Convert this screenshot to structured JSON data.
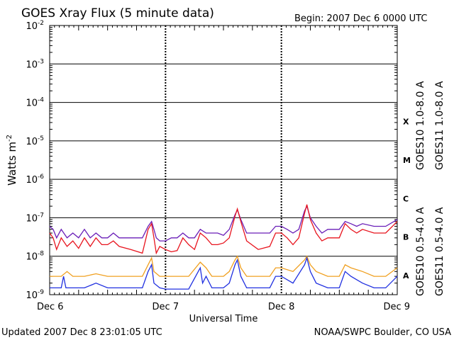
{
  "chart_data": {
    "type": "line",
    "title": "GOES Xray Flux (5 minute data)",
    "begin_label": "Begin:  2007 Dec 6 0000 UTC",
    "ylabel": "Watts m",
    "ylabel_exp": "-2",
    "xlabel": "Universal Time",
    "yscale": "log",
    "ylim": [
      1e-09,
      0.01
    ],
    "y_ticks": [
      {
        "base": "10",
        "exp": "-2"
      },
      {
        "base": "10",
        "exp": "-3"
      },
      {
        "base": "10",
        "exp": "-4"
      },
      {
        "base": "10",
        "exp": "-5"
      },
      {
        "base": "10",
        "exp": "-6"
      },
      {
        "base": "10",
        "exp": "-7"
      },
      {
        "base": "10",
        "exp": "-8"
      },
      {
        "base": "10",
        "exp": "-9"
      }
    ],
    "x_ticks": [
      "Dec 6",
      "Dec 7",
      "Dec 8",
      "Dec 9"
    ],
    "xlim_days": [
      0,
      3
    ],
    "flare_classes": [
      "X",
      "M",
      "C",
      "B",
      "A"
    ],
    "series": [
      {
        "name": "GOES10 1.0-8.0 A",
        "color": "#6a1fb8",
        "x": [
          0,
          0.03,
          0.06,
          0.1,
          0.15,
          0.2,
          0.25,
          0.3,
          0.35,
          0.4,
          0.45,
          0.5,
          0.55,
          0.6,
          0.7,
          0.8,
          0.85,
          0.88,
          0.9,
          0.92,
          0.95,
          1.0,
          1.05,
          1.1,
          1.15,
          1.2,
          1.25,
          1.3,
          1.35,
          1.4,
          1.45,
          1.5,
          1.55,
          1.6,
          1.62,
          1.65,
          1.7,
          1.8,
          1.9,
          1.95,
          2.0,
          2.05,
          2.1,
          2.15,
          2.2,
          2.22,
          2.25,
          2.3,
          2.35,
          2.4,
          2.5,
          2.55,
          2.6,
          2.65,
          2.7,
          2.8,
          2.9,
          3.0
        ],
        "y": [
          6e-08,
          5e-08,
          3e-08,
          5e-08,
          3e-08,
          4e-08,
          3e-08,
          5e-08,
          3e-08,
          4e-08,
          3e-08,
          3e-08,
          4e-08,
          3e-08,
          3e-08,
          3e-08,
          6e-08,
          8e-08,
          5e-08,
          3e-08,
          2.5e-08,
          2.5e-08,
          3e-08,
          3e-08,
          4e-08,
          3e-08,
          3e-08,
          5e-08,
          4e-08,
          4e-08,
          4e-08,
          3.5e-08,
          5e-08,
          1.2e-07,
          1.6e-07,
          9e-08,
          4e-08,
          4e-08,
          4e-08,
          6e-08,
          6e-08,
          5e-08,
          4e-08,
          5e-08,
          1.5e-07,
          2e-07,
          1e-07,
          6e-08,
          4e-08,
          5e-08,
          5e-08,
          8e-08,
          7e-08,
          6e-08,
          7e-08,
          6e-08,
          6e-08,
          9e-08
        ]
      },
      {
        "name": "GOES11 1.0-8.0 A",
        "color": "#e8141e",
        "x": [
          0,
          0.03,
          0.06,
          0.1,
          0.15,
          0.2,
          0.25,
          0.3,
          0.35,
          0.4,
          0.45,
          0.5,
          0.55,
          0.6,
          0.7,
          0.8,
          0.85,
          0.88,
          0.9,
          0.92,
          0.95,
          1.0,
          1.05,
          1.1,
          1.15,
          1.2,
          1.25,
          1.3,
          1.35,
          1.4,
          1.45,
          1.5,
          1.55,
          1.6,
          1.62,
          1.65,
          1.7,
          1.8,
          1.9,
          1.95,
          2.0,
          2.05,
          2.1,
          2.15,
          2.2,
          2.22,
          2.25,
          2.3,
          2.35,
          2.4,
          2.5,
          2.55,
          2.6,
          2.65,
          2.7,
          2.8,
          2.9,
          3.0
        ],
        "y": [
          4e-08,
          3e-08,
          1.5e-08,
          3e-08,
          1.8e-08,
          2.5e-08,
          1.6e-08,
          3e-08,
          1.8e-08,
          3e-08,
          2e-08,
          2e-08,
          2.5e-08,
          1.8e-08,
          1.5e-08,
          1.2e-08,
          5e-08,
          7e-08,
          3e-08,
          1.2e-08,
          1.8e-08,
          1.5e-08,
          1.3e-08,
          1.4e-08,
          3e-08,
          2e-08,
          1.5e-08,
          4e-08,
          3e-08,
          2e-08,
          2e-08,
          2.2e-08,
          3e-08,
          1.1e-07,
          1.7e-07,
          8e-08,
          2.5e-08,
          1.5e-08,
          1.8e-08,
          4e-08,
          4e-08,
          3e-08,
          2e-08,
          3e-08,
          1.3e-07,
          2.2e-07,
          9e-08,
          4e-08,
          2.5e-08,
          3e-08,
          3e-08,
          7e-08,
          5e-08,
          4e-08,
          5e-08,
          4e-08,
          4e-08,
          8e-08
        ]
      },
      {
        "name": "GOES10 0.5-4.0 A",
        "color": "#f0a020",
        "x": [
          0,
          0.1,
          0.15,
          0.2,
          0.3,
          0.4,
          0.5,
          0.6,
          0.8,
          0.85,
          0.88,
          0.9,
          0.95,
          1.0,
          1.1,
          1.2,
          1.3,
          1.35,
          1.4,
          1.5,
          1.55,
          1.6,
          1.62,
          1.65,
          1.7,
          1.8,
          1.9,
          1.95,
          2.0,
          2.1,
          2.2,
          2.22,
          2.25,
          2.3,
          2.4,
          2.5,
          2.55,
          2.6,
          2.7,
          2.8,
          2.9,
          3.0
        ],
        "y": [
          3e-09,
          3e-09,
          4e-09,
          3e-09,
          3e-09,
          3.5e-09,
          3e-09,
          3e-09,
          3e-09,
          6e-09,
          9e-09,
          4e-09,
          3e-09,
          3e-09,
          3e-09,
          3e-09,
          7e-09,
          5e-09,
          3e-09,
          3e-09,
          4e-09,
          8e-09,
          1e-08,
          5e-09,
          3e-09,
          3e-09,
          3e-09,
          5e-09,
          5e-09,
          4e-09,
          8e-09,
          1e-08,
          6e-09,
          4e-09,
          3e-09,
          3e-09,
          6e-09,
          5e-09,
          4e-09,
          3e-09,
          3e-09,
          5e-09
        ]
      },
      {
        "name": "GOES11 0.5-4.0 A",
        "color": "#2030e0",
        "x": [
          0,
          0.1,
          0.12,
          0.14,
          0.2,
          0.3,
          0.4,
          0.5,
          0.6,
          0.8,
          0.85,
          0.88,
          0.9,
          0.95,
          1.0,
          1.1,
          1.2,
          1.3,
          1.32,
          1.35,
          1.4,
          1.5,
          1.55,
          1.6,
          1.62,
          1.65,
          1.7,
          1.8,
          1.9,
          1.95,
          2.0,
          2.1,
          2.2,
          2.22,
          2.25,
          2.3,
          2.4,
          2.5,
          2.55,
          2.6,
          2.7,
          2.8,
          2.9,
          3.0
        ],
        "y": [
          1.5e-09,
          1.5e-09,
          3e-09,
          1.5e-09,
          1.5e-09,
          1.5e-09,
          2e-09,
          1.5e-09,
          1.5e-09,
          1.5e-09,
          4e-09,
          6e-09,
          2e-09,
          1.5e-09,
          1.4e-09,
          1.4e-09,
          1.4e-09,
          5e-09,
          2e-09,
          3e-09,
          1.5e-09,
          1.5e-09,
          2e-09,
          6e-09,
          8e-09,
          3e-09,
          1.5e-09,
          1.5e-09,
          1.5e-09,
          3e-09,
          3e-09,
          2e-09,
          6e-09,
          9e-09,
          4e-09,
          2e-09,
          1.5e-09,
          1.5e-09,
          4e-09,
          3e-09,
          2e-09,
          1.5e-09,
          1.5e-09,
          3e-09
        ]
      }
    ]
  },
  "footer": {
    "updated": "Updated 2007 Dec  8 23:01:05 UTC",
    "credit": "NOAA/SWPC Boulder, CO USA"
  }
}
